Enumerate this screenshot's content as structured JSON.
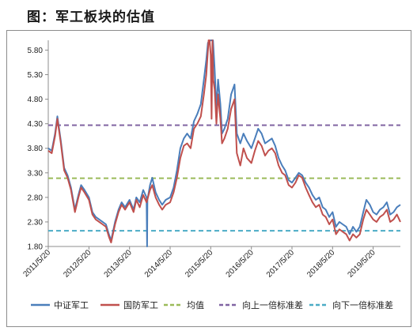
{
  "caption": "图：军工板块的估值",
  "chart_data": {
    "type": "line",
    "title": "",
    "xlabel": "",
    "ylabel": "",
    "ylim": [
      1.8,
      6.0
    ],
    "yticks": [
      "1.80",
      "2.30",
      "2.80",
      "3.30",
      "3.80",
      "4.30",
      "4.80",
      "5.30",
      "5.80"
    ],
    "xticks": [
      {
        "label": "2011/5/20",
        "date": "2011-05-20"
      },
      {
        "label": "2012/5/20",
        "date": "2012-05-20"
      },
      {
        "label": "2013/5/20",
        "date": "2013-05-20"
      },
      {
        "label": "2014/5/20",
        "date": "2014-05-20"
      },
      {
        "label": "2015/5/20",
        "date": "2015-05-20"
      },
      {
        "label": "2016/5/20",
        "date": "2016-05-20"
      },
      {
        "label": "2017/5/20",
        "date": "2017-05-20"
      },
      {
        "label": "2018/5/20",
        "date": "2018-05-20"
      },
      {
        "label": "2019/5/20",
        "date": "2019-05-20"
      }
    ],
    "xlim": [
      "2011-05-20",
      "2020-01-20"
    ],
    "grid": false,
    "legend_position": "bottom",
    "series": [
      {
        "name": "中证军工",
        "color": "#4a7ebb",
        "style": "solid",
        "points": [
          [
            "2011-05-20",
            3.8
          ],
          [
            "2011-06-20",
            3.75
          ],
          [
            "2011-07-20",
            4.1
          ],
          [
            "2011-08-10",
            4.45
          ],
          [
            "2011-09-10",
            3.95
          ],
          [
            "2011-10-10",
            3.4
          ],
          [
            "2011-11-10",
            3.25
          ],
          [
            "2011-12-10",
            3.0
          ],
          [
            "2012-01-15",
            2.55
          ],
          [
            "2012-02-15",
            2.85
          ],
          [
            "2012-03-10",
            3.05
          ],
          [
            "2012-04-10",
            2.95
          ],
          [
            "2012-05-20",
            2.8
          ],
          [
            "2012-06-20",
            2.5
          ],
          [
            "2012-07-20",
            2.4
          ],
          [
            "2012-08-20",
            2.35
          ],
          [
            "2012-09-20",
            2.3
          ],
          [
            "2012-10-20",
            2.25
          ],
          [
            "2012-11-15",
            2.05
          ],
          [
            "2012-12-05",
            1.92
          ],
          [
            "2013-01-10",
            2.3
          ],
          [
            "2013-02-10",
            2.55
          ],
          [
            "2013-03-10",
            2.7
          ],
          [
            "2013-04-10",
            2.6
          ],
          [
            "2013-05-20",
            2.75
          ],
          [
            "2013-06-25",
            2.55
          ],
          [
            "2013-07-20",
            2.8
          ],
          [
            "2013-08-20",
            2.7
          ],
          [
            "2013-09-20",
            2.95
          ],
          [
            "2013-10-20",
            2.8
          ],
          [
            "2013-10-25",
            1.8
          ],
          [
            "2013-10-28",
            2.75
          ],
          [
            "2013-11-20",
            3.05
          ],
          [
            "2013-12-10",
            3.2
          ],
          [
            "2014-01-10",
            2.9
          ],
          [
            "2014-02-10",
            2.75
          ],
          [
            "2014-03-10",
            2.65
          ],
          [
            "2014-04-10",
            2.75
          ],
          [
            "2014-05-20",
            2.8
          ],
          [
            "2014-06-20",
            3.0
          ],
          [
            "2014-07-20",
            3.35
          ],
          [
            "2014-08-20",
            3.8
          ],
          [
            "2014-09-20",
            4.0
          ],
          [
            "2014-10-20",
            4.1
          ],
          [
            "2014-11-20",
            4.0
          ],
          [
            "2014-12-20",
            4.35
          ],
          [
            "2015-01-20",
            4.5
          ],
          [
            "2015-02-20",
            4.7
          ],
          [
            "2015-03-20",
            5.2
          ],
          [
            "2015-04-10",
            5.6
          ],
          [
            "2015-04-25",
            5.95
          ],
          [
            "2015-05-20",
            6.0
          ],
          [
            "2015-06-10",
            6.0
          ],
          [
            "2015-06-25",
            5.4
          ],
          [
            "2015-07-10",
            4.6
          ],
          [
            "2015-07-25",
            5.2
          ],
          [
            "2015-08-15",
            4.7
          ],
          [
            "2015-08-30",
            4.1
          ],
          [
            "2015-09-20",
            4.2
          ],
          [
            "2015-10-20",
            4.4
          ],
          [
            "2015-11-20",
            4.9
          ],
          [
            "2015-12-20",
            5.1
          ],
          [
            "2016-01-10",
            4.1
          ],
          [
            "2016-02-10",
            3.9
          ],
          [
            "2016-03-10",
            4.1
          ],
          [
            "2016-04-10",
            3.95
          ],
          [
            "2016-05-20",
            3.8
          ],
          [
            "2016-06-20",
            4.0
          ],
          [
            "2016-07-20",
            4.2
          ],
          [
            "2016-08-20",
            4.1
          ],
          [
            "2016-09-20",
            3.9
          ],
          [
            "2016-10-20",
            3.95
          ],
          [
            "2016-11-20",
            4.0
          ],
          [
            "2016-12-20",
            3.85
          ],
          [
            "2017-01-20",
            3.6
          ],
          [
            "2017-02-20",
            3.45
          ],
          [
            "2017-03-20",
            3.35
          ],
          [
            "2017-04-20",
            3.15
          ],
          [
            "2017-05-20",
            3.1
          ],
          [
            "2017-06-20",
            3.2
          ],
          [
            "2017-07-20",
            3.3
          ],
          [
            "2017-08-20",
            3.25
          ],
          [
            "2017-09-20",
            3.1
          ],
          [
            "2017-10-20",
            3.0
          ],
          [
            "2017-11-20",
            2.85
          ],
          [
            "2017-12-20",
            2.75
          ],
          [
            "2018-01-20",
            2.8
          ],
          [
            "2018-02-20",
            2.6
          ],
          [
            "2018-03-20",
            2.55
          ],
          [
            "2018-04-20",
            2.4
          ],
          [
            "2018-05-20",
            2.5
          ],
          [
            "2018-06-20",
            2.2
          ],
          [
            "2018-07-20",
            2.3
          ],
          [
            "2018-08-20",
            2.25
          ],
          [
            "2018-09-20",
            2.2
          ],
          [
            "2018-10-20",
            2.05
          ],
          [
            "2018-11-20",
            2.2
          ],
          [
            "2018-12-20",
            2.1
          ],
          [
            "2019-01-20",
            2.2
          ],
          [
            "2019-02-20",
            2.5
          ],
          [
            "2019-03-20",
            2.75
          ],
          [
            "2019-04-20",
            2.65
          ],
          [
            "2019-05-20",
            2.5
          ],
          [
            "2019-06-20",
            2.45
          ],
          [
            "2019-07-20",
            2.55
          ],
          [
            "2019-08-20",
            2.6
          ],
          [
            "2019-09-20",
            2.7
          ],
          [
            "2019-10-20",
            2.45
          ],
          [
            "2019-11-20",
            2.5
          ],
          [
            "2019-12-20",
            2.6
          ],
          [
            "2020-01-20",
            2.65
          ]
        ]
      },
      {
        "name": "国防军工",
        "color": "#c0504d",
        "style": "solid",
        "points": [
          [
            "2011-05-20",
            3.75
          ],
          [
            "2011-06-20",
            3.7
          ],
          [
            "2011-07-20",
            4.05
          ],
          [
            "2011-08-10",
            4.4
          ],
          [
            "2011-09-10",
            3.9
          ],
          [
            "2011-10-10",
            3.35
          ],
          [
            "2011-11-10",
            3.2
          ],
          [
            "2011-12-10",
            2.95
          ],
          [
            "2012-01-15",
            2.5
          ],
          [
            "2012-02-15",
            2.8
          ],
          [
            "2012-03-10",
            3.0
          ],
          [
            "2012-04-10",
            2.9
          ],
          [
            "2012-05-20",
            2.75
          ],
          [
            "2012-06-20",
            2.45
          ],
          [
            "2012-07-20",
            2.35
          ],
          [
            "2012-08-20",
            2.3
          ],
          [
            "2012-09-20",
            2.25
          ],
          [
            "2012-10-20",
            2.2
          ],
          [
            "2012-11-15",
            2.0
          ],
          [
            "2012-12-05",
            1.88
          ],
          [
            "2013-01-10",
            2.25
          ],
          [
            "2013-02-10",
            2.5
          ],
          [
            "2013-03-10",
            2.65
          ],
          [
            "2013-04-10",
            2.55
          ],
          [
            "2013-05-20",
            2.7
          ],
          [
            "2013-06-25",
            2.5
          ],
          [
            "2013-07-20",
            2.75
          ],
          [
            "2013-08-20",
            2.6
          ],
          [
            "2013-09-20",
            2.85
          ],
          [
            "2013-10-20",
            2.7
          ],
          [
            "2013-11-20",
            2.95
          ],
          [
            "2013-12-10",
            3.05
          ],
          [
            "2014-01-10",
            2.8
          ],
          [
            "2014-02-10",
            2.65
          ],
          [
            "2014-03-10",
            2.55
          ],
          [
            "2014-04-10",
            2.65
          ],
          [
            "2014-05-20",
            2.7
          ],
          [
            "2014-06-20",
            2.9
          ],
          [
            "2014-07-20",
            3.2
          ],
          [
            "2014-08-20",
            3.6
          ],
          [
            "2014-09-20",
            3.85
          ],
          [
            "2014-10-20",
            3.9
          ],
          [
            "2014-11-20",
            3.8
          ],
          [
            "2014-12-20",
            4.2
          ],
          [
            "2015-01-20",
            4.3
          ],
          [
            "2015-02-20",
            4.45
          ],
          [
            "2015-03-20",
            4.9
          ],
          [
            "2015-04-10",
            5.3
          ],
          [
            "2015-04-25",
            5.8
          ],
          [
            "2015-05-01",
            6.0
          ],
          [
            "2015-05-10",
            6.0
          ],
          [
            "2015-05-20",
            5.7
          ],
          [
            "2015-05-28",
            4.4
          ],
          [
            "2015-06-05",
            6.0
          ],
          [
            "2015-06-12",
            5.2
          ],
          [
            "2015-06-25",
            5.0
          ],
          [
            "2015-07-10",
            4.3
          ],
          [
            "2015-07-25",
            4.9
          ],
          [
            "2015-08-15",
            4.4
          ],
          [
            "2015-08-30",
            3.9
          ],
          [
            "2015-09-20",
            4.0
          ],
          [
            "2015-10-20",
            4.2
          ],
          [
            "2015-11-20",
            4.6
          ],
          [
            "2015-12-20",
            4.8
          ],
          [
            "2016-01-10",
            3.7
          ],
          [
            "2016-02-10",
            3.45
          ],
          [
            "2016-03-10",
            3.8
          ],
          [
            "2016-04-10",
            3.6
          ],
          [
            "2016-05-20",
            3.5
          ],
          [
            "2016-06-20",
            3.75
          ],
          [
            "2016-07-20",
            3.95
          ],
          [
            "2016-08-20",
            3.85
          ],
          [
            "2016-09-20",
            3.65
          ],
          [
            "2016-10-20",
            3.75
          ],
          [
            "2016-11-20",
            3.8
          ],
          [
            "2016-12-20",
            3.7
          ],
          [
            "2017-01-20",
            3.45
          ],
          [
            "2017-02-20",
            3.3
          ],
          [
            "2017-03-20",
            3.25
          ],
          [
            "2017-04-20",
            3.05
          ],
          [
            "2017-05-20",
            3.0
          ],
          [
            "2017-06-20",
            3.1
          ],
          [
            "2017-07-20",
            3.25
          ],
          [
            "2017-08-20",
            3.2
          ],
          [
            "2017-09-20",
            3.0
          ],
          [
            "2017-10-20",
            2.85
          ],
          [
            "2017-11-20",
            2.7
          ],
          [
            "2017-12-20",
            2.6
          ],
          [
            "2018-01-20",
            2.65
          ],
          [
            "2018-02-20",
            2.45
          ],
          [
            "2018-03-20",
            2.4
          ],
          [
            "2018-04-20",
            2.25
          ],
          [
            "2018-05-20",
            2.35
          ],
          [
            "2018-06-20",
            2.05
          ],
          [
            "2018-07-20",
            2.15
          ],
          [
            "2018-08-20",
            2.1
          ],
          [
            "2018-09-20",
            2.05
          ],
          [
            "2018-10-20",
            1.92
          ],
          [
            "2018-11-20",
            2.05
          ],
          [
            "2018-12-20",
            1.98
          ],
          [
            "2019-01-20",
            2.05
          ],
          [
            "2019-02-20",
            2.35
          ],
          [
            "2019-03-20",
            2.55
          ],
          [
            "2019-04-20",
            2.45
          ],
          [
            "2019-05-20",
            2.35
          ],
          [
            "2019-06-20",
            2.3
          ],
          [
            "2019-07-20",
            2.4
          ],
          [
            "2019-08-20",
            2.45
          ],
          [
            "2019-09-20",
            2.55
          ],
          [
            "2019-10-20",
            2.3
          ],
          [
            "2019-11-20",
            2.35
          ],
          [
            "2019-12-20",
            2.45
          ],
          [
            "2020-01-20",
            2.3
          ]
        ]
      },
      {
        "name": "均值",
        "color": "#9bbb59",
        "style": "dashed",
        "constant": 3.19
      },
      {
        "name": "向上一倍标准差",
        "color": "#8064a2",
        "style": "dashed",
        "constant": 4.27
      },
      {
        "name": "向下一倍标准差",
        "color": "#4bacc6",
        "style": "dashed",
        "constant": 2.12
      }
    ]
  }
}
